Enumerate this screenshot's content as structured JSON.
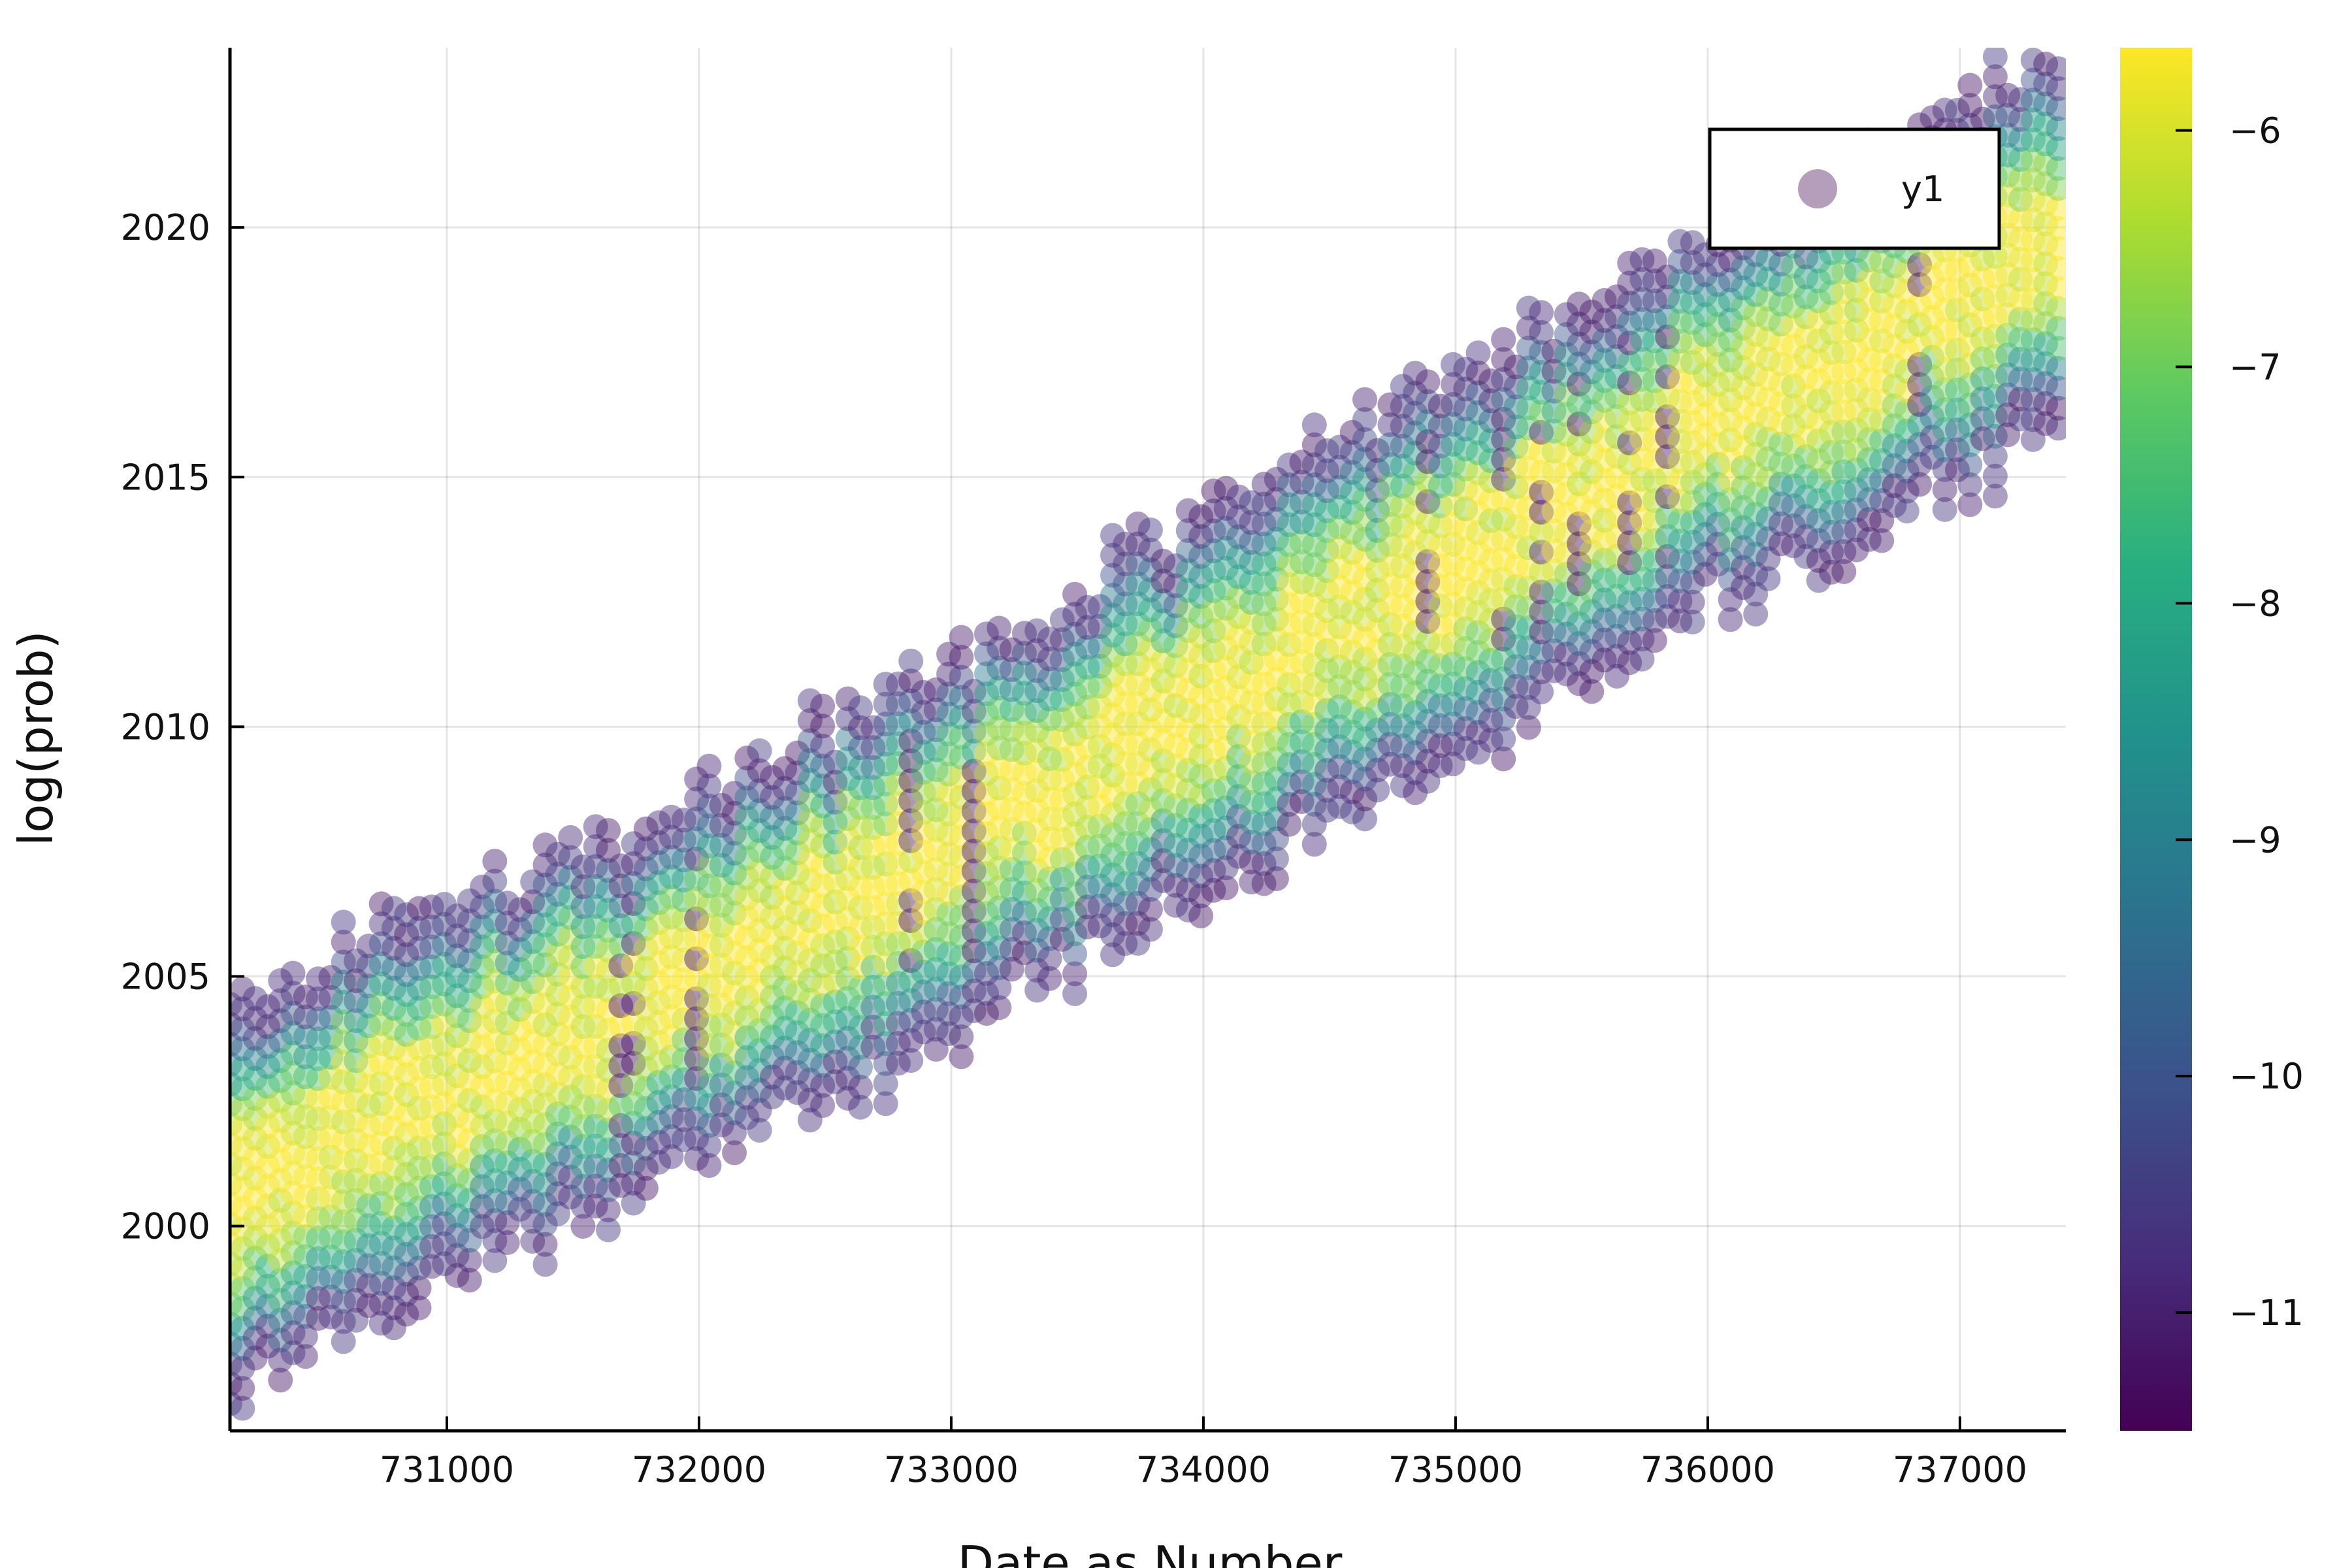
{
  "chart_data": {
    "type": "scatter",
    "title": "",
    "xlabel": "Date as Number",
    "ylabel": "log(prob)",
    "xlim": [
      730140,
      737420
    ],
    "ylim": [
      1995.9,
      2023.6
    ],
    "x_ticks": [
      731000,
      732000,
      733000,
      734000,
      735000,
      736000,
      737000
    ],
    "y_ticks": [
      2000,
      2005,
      2010,
      2015,
      2020
    ],
    "grid": true,
    "legend": {
      "position": "top-right",
      "entries": [
        "y1"
      ],
      "marker_color": "#6a3d7a"
    },
    "colorbar": {
      "range": [
        -11.5,
        -5.65
      ],
      "ticks": [
        -6,
        -7,
        -8,
        -9,
        -10,
        -11
      ],
      "tick_labels": [
        "−6",
        "−7",
        "−8",
        "−9",
        "−10",
        "−11"
      ],
      "colormap": "viridis"
    },
    "marker_alpha": 0.45,
    "series": [
      {
        "name": "y1",
        "description_of_distribution": "dense diagonal band of points; each x column holds points at integer-ish y spacing, color = log(prob)",
        "band_center": {
          "x": [
            730140,
            731000,
            732000,
            733000,
            734000,
            735000,
            736000,
            737000,
            737420
          ],
          "y": [
            2000.6,
            2002.8,
            2005.0,
            2007.6,
            2010.5,
            2013.2,
            2016.0,
            2018.7,
            2019.9
          ]
        },
        "band_halfwidth_years": 3.4,
        "column_step_x": 50,
        "row_step_y": 0.4,
        "dark_columns_x": [
          731720,
          732000,
          732850,
          733100,
          734900,
          735200,
          735350,
          735500,
          735700,
          735850,
          736850
        ]
      }
    ]
  }
}
